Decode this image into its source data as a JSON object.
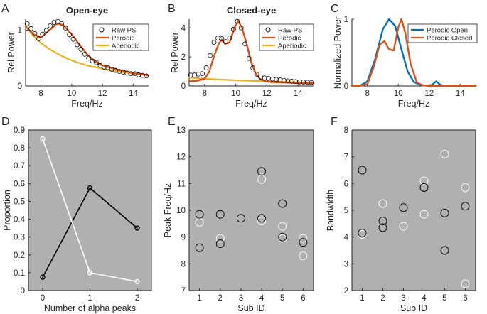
{
  "colors": {
    "raw": "#111111",
    "periodic": "#d95319",
    "aperiodic": "#edb120",
    "open": "#0072bd",
    "closed": "#d95319",
    "panel_bg": "#b0b0b0",
    "dark_series": "#000000",
    "light_series": "#ffffff"
  },
  "chart_data": [
    {
      "panel": "A",
      "type": "line",
      "title": "Open-eye",
      "xlabel": "Freq/Hz",
      "ylabel": "Rel Power",
      "xlim": [
        7,
        15
      ],
      "ylim": [
        0,
        1.2
      ],
      "xticks": [
        8,
        10,
        12,
        14
      ],
      "yticks": [
        0,
        1
      ],
      "legend": [
        "Raw PS",
        "Perodic",
        "Aperiodic"
      ],
      "series": [
        {
          "name": "Raw PS",
          "style": "circles",
          "x": [
            7.1,
            7.35,
            7.6,
            7.85,
            8.1,
            8.35,
            8.6,
            8.85,
            9.1,
            9.35,
            9.6,
            9.85,
            10.1,
            10.35,
            10.6,
            10.85,
            11.1,
            11.35,
            11.6,
            11.85,
            12.1,
            12.35,
            12.6,
            12.85,
            13.1,
            13.35,
            13.6,
            13.85,
            14.1,
            14.35,
            14.6,
            14.85
          ],
          "y": [
            1.12,
            1.03,
            0.94,
            0.85,
            0.93,
            1.0,
            1.08,
            1.14,
            1.16,
            1.12,
            1.04,
            0.92,
            0.84,
            0.74,
            0.66,
            0.57,
            0.5,
            0.45,
            0.42,
            0.37,
            0.34,
            0.33,
            0.3,
            0.28,
            0.26,
            0.25,
            0.23,
            0.22,
            0.22,
            0.2,
            0.19,
            0.18
          ]
        },
        {
          "name": "Perodic",
          "style": "line",
          "x": [
            7,
            7.5,
            8,
            8.5,
            9,
            9.2,
            9.5,
            10,
            10.5,
            11,
            11.5,
            12,
            12.5,
            13,
            13.5,
            14,
            14.5,
            15
          ],
          "y": [
            1.07,
            0.93,
            0.87,
            0.99,
            1.11,
            1.12,
            1.08,
            0.93,
            0.74,
            0.57,
            0.44,
            0.37,
            0.33,
            0.29,
            0.26,
            0.23,
            0.21,
            0.19
          ]
        },
        {
          "name": "Aperiodic",
          "style": "line",
          "x": [
            7,
            7.5,
            8,
            8.5,
            9,
            9.5,
            10,
            10.5,
            11,
            11.5,
            12,
            12.5,
            13,
            13.5,
            14,
            14.5,
            15
          ],
          "y": [
            1.08,
            0.9,
            0.77,
            0.67,
            0.59,
            0.52,
            0.46,
            0.41,
            0.37,
            0.34,
            0.31,
            0.28,
            0.26,
            0.24,
            0.22,
            0.21,
            0.19
          ]
        }
      ]
    },
    {
      "panel": "B",
      "type": "line",
      "title": "Closed-eye",
      "xlabel": "Freq/Hz",
      "ylabel": "Rel Power",
      "xlim": [
        7,
        15
      ],
      "ylim": [
        0,
        4.6
      ],
      "xticks": [
        8,
        10,
        12,
        14
      ],
      "yticks": [
        0,
        2,
        4
      ],
      "legend": [
        "Raw PS",
        "Perodic",
        "Aperiodic"
      ],
      "series": [
        {
          "name": "Raw PS",
          "style": "circles",
          "x": [
            7.1,
            7.35,
            7.6,
            7.85,
            8.1,
            8.35,
            8.6,
            8.85,
            9.1,
            9.35,
            9.6,
            9.85,
            10.1,
            10.35,
            10.6,
            10.85,
            11.1,
            11.35,
            11.6,
            11.85,
            12.1,
            12.35,
            12.6,
            12.85,
            13.1,
            13.35,
            13.6,
            13.85,
            14.1,
            14.35,
            14.6,
            14.85
          ],
          "y": [
            0.75,
            0.75,
            0.82,
            0.85,
            1.25,
            2.1,
            3.0,
            3.3,
            3.25,
            3.05,
            3.3,
            3.9,
            4.45,
            4.0,
            2.9,
            1.9,
            1.25,
            0.8,
            0.62,
            0.55,
            0.52,
            0.48,
            0.45,
            0.42,
            0.38,
            0.35,
            0.33,
            0.3,
            0.28,
            0.27,
            0.25,
            0.24
          ]
        },
        {
          "name": "Perodic",
          "style": "line",
          "x": [
            7,
            7.5,
            8,
            8.3,
            8.6,
            8.9,
            9.1,
            9.3,
            9.6,
            9.9,
            10.15,
            10.4,
            10.7,
            11,
            11.3,
            11.6,
            12,
            12.5,
            13,
            14,
            15
          ],
          "y": [
            0.32,
            0.35,
            0.5,
            1.0,
            2.05,
            2.9,
            3.2,
            2.9,
            3.0,
            3.95,
            4.5,
            4.0,
            2.9,
            1.6,
            0.8,
            0.45,
            0.3,
            0.26,
            0.24,
            0.2,
            0.18
          ]
        },
        {
          "name": "Aperiodic",
          "style": "line",
          "x": [
            7,
            8,
            9,
            10,
            11,
            12,
            13,
            14,
            15
          ],
          "y": [
            0.58,
            0.5,
            0.44,
            0.39,
            0.35,
            0.32,
            0.29,
            0.26,
            0.24
          ]
        }
      ]
    },
    {
      "panel": "C",
      "type": "line",
      "xlabel": "Freq/Hz",
      "ylabel": "Normalized Power",
      "xlim": [
        7,
        15
      ],
      "ylim": [
        0,
        1
      ],
      "xticks": [
        8,
        10,
        12,
        14
      ],
      "yticks": [
        0,
        1
      ],
      "legend": [
        "Perodic Open",
        "Perodic Closed"
      ],
      "series": [
        {
          "name": "Perodic Open",
          "x": [
            7,
            7.5,
            8,
            8.5,
            9,
            9.4,
            9.8,
            10.2,
            10.6,
            11,
            11.5,
            12,
            12.2,
            12.45,
            12.7,
            13,
            13.5,
            15
          ],
          "y": [
            0,
            0,
            0.07,
            0.4,
            0.85,
            1.0,
            0.9,
            0.55,
            0.22,
            0.06,
            0.01,
            0.005,
            0.02,
            0.07,
            0.02,
            0,
            0,
            0
          ]
        },
        {
          "name": "Perodic Closed",
          "x": [
            7,
            7.5,
            8,
            8.4,
            8.8,
            9.1,
            9.4,
            9.7,
            10,
            10.2,
            10.45,
            10.8,
            11.2,
            11.6,
            12,
            15
          ],
          "y": [
            0,
            0,
            0.03,
            0.28,
            0.62,
            0.67,
            0.55,
            0.53,
            0.88,
            1.0,
            0.8,
            0.33,
            0.05,
            0.01,
            0,
            0
          ]
        }
      ]
    },
    {
      "panel": "D",
      "type": "line",
      "xlabel": "Number of alpha peaks",
      "ylabel": "Proportion",
      "xlim": [
        -0.3,
        2.3
      ],
      "ylim": [
        0,
        0.9
      ],
      "xticks": [
        0,
        1,
        2
      ],
      "yticks": [
        0,
        0.1,
        0.2,
        0.3,
        0.4,
        0.5,
        0.6,
        0.7,
        0.8,
        0.9
      ],
      "series": [
        {
          "name": "dark",
          "x": [
            0,
            1,
            2
          ],
          "y": [
            0.075,
            0.575,
            0.35
          ]
        },
        {
          "name": "light",
          "x": [
            0,
            1,
            2
          ],
          "y": [
            0.85,
            0.1,
            0.05
          ]
        }
      ]
    },
    {
      "panel": "E",
      "type": "scatter",
      "xlabel": "Sub ID",
      "ylabel": "Peak Freq/Hz",
      "xlim": [
        0.5,
        6.5
      ],
      "ylim": [
        7,
        13
      ],
      "xticks": [
        1,
        2,
        3,
        4,
        5,
        6
      ],
      "yticks": [
        7,
        8,
        9,
        10,
        11,
        12,
        13
      ],
      "series": [
        {
          "name": "dark",
          "x": [
            1,
            1,
            2,
            2,
            3,
            4,
            4,
            5,
            5,
            6
          ],
          "y": [
            9.85,
            8.6,
            9.85,
            8.75,
            9.7,
            11.45,
            9.7,
            10.25,
            9.0,
            8.8
          ]
        },
        {
          "name": "light",
          "x": [
            1,
            2,
            4,
            4,
            5,
            5,
            6,
            6
          ],
          "y": [
            9.55,
            8.95,
            11.15,
            9.6,
            9.4,
            8.95,
            8.95,
            8.3
          ]
        }
      ]
    },
    {
      "panel": "F",
      "type": "scatter",
      "xlabel": "Sub ID",
      "ylabel": "Bandwidth",
      "xlim": [
        0.5,
        6.5
      ],
      "ylim": [
        2,
        8
      ],
      "xticks": [
        1,
        2,
        3,
        4,
        5,
        6
      ],
      "yticks": [
        2,
        3,
        4,
        5,
        6,
        7,
        8
      ],
      "series": [
        {
          "name": "dark",
          "x": [
            1,
            1,
            2,
            2,
            3,
            4,
            5,
            5,
            6
          ],
          "y": [
            6.5,
            4.15,
            4.6,
            4.35,
            5.1,
            5.85,
            4.9,
            3.5,
            5.15
          ]
        },
        {
          "name": "light",
          "x": [
            1,
            2,
            3,
            4,
            4,
            5,
            6,
            6
          ],
          "y": [
            4.1,
            5.25,
            4.4,
            6.1,
            4.85,
            7.1,
            5.85,
            2.25
          ]
        }
      ]
    }
  ]
}
